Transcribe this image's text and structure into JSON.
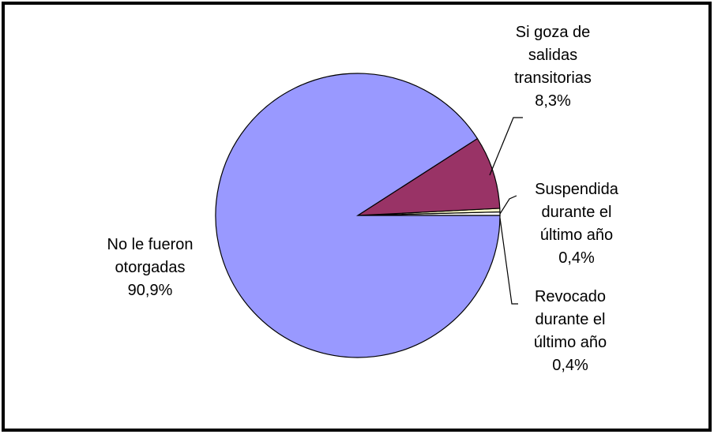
{
  "chart_data": {
    "type": "pie",
    "categories": [
      "Revocado\ndurante el\núltimo año",
      "Suspendida\ndurante el\núltimo año",
      "Si goza de\nsalidas\ntransitorias",
      "No le fueron\notorgadas"
    ],
    "values": [
      0.4,
      0.4,
      8.3,
      90.9
    ],
    "value_labels": [
      "0,4%",
      "0,4%",
      "8,3%",
      "90,9%"
    ],
    "colors": [
      "#ffffff",
      "#ffffcc",
      "#993366",
      "#9999ff"
    ]
  }
}
